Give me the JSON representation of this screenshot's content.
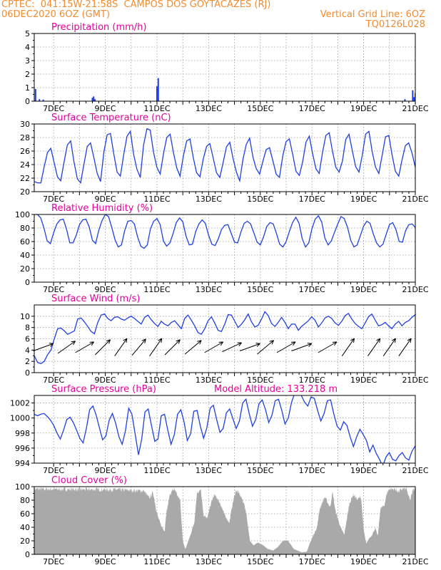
{
  "header": {
    "line1": "CPTEC:  041:15W-21:58S  CAMPOS DOS GOYTACAZES (RJ)",
    "line2_left": "06DEC2020 6OZ (GMT)",
    "line2_right": "Vertical Grid Line: 6OZ",
    "line3_right": "TQ0126L028"
  },
  "colors": {
    "header": "#f08c32",
    "title": "#e6009a",
    "series": "#2040e0",
    "cloud": "#a9a9a9",
    "wind_arrow": "#000000"
  },
  "x_tick_labels": [
    "7DEC",
    "9DEC",
    "11DEC",
    "13DEC",
    "15DEC",
    "17DEC",
    "19DEC",
    "21DEC"
  ],
  "chart_data": [
    {
      "type": "bar",
      "title": "Precipitation (mm/h)",
      "x_start_day": 6.25,
      "x_end_day": 21,
      "ylim": [
        0,
        5
      ],
      "yticks": [
        0,
        1,
        2,
        3,
        4,
        5
      ],
      "grid": true,
      "spikes": [
        [
          6.3,
          0.9
        ],
        [
          6.45,
          0.15
        ],
        [
          6.6,
          0.12
        ],
        [
          8.5,
          0.25
        ],
        [
          8.55,
          0.35
        ],
        [
          8.6,
          0.15
        ],
        [
          11.0,
          1.1
        ],
        [
          11.05,
          1.7
        ],
        [
          20.6,
          0.15
        ],
        [
          20.9,
          0.8
        ],
        [
          20.95,
          0.3
        ],
        [
          21.0,
          0.6
        ]
      ]
    },
    {
      "type": "line",
      "title": "Surface Temperature (nC)",
      "ylim": [
        20,
        30
      ],
      "yticks": [
        20,
        22,
        24,
        26,
        28,
        30
      ],
      "grid": true,
      "series": [
        {
          "values": [
            21.5,
            21.3,
            21.3,
            23.7,
            25.8,
            26.4,
            24.3,
            22.2,
            21.6,
            24.4,
            26.9,
            27.5,
            24.4,
            21.9,
            21.3,
            24.1,
            26.7,
            27.2,
            25.0,
            22.7,
            21.5,
            25.8,
            28.4,
            28.6,
            25.6,
            22.9,
            22.3,
            25.5,
            28.2,
            28.9,
            25.5,
            23.3,
            22.1,
            26.9,
            29.3,
            29.1,
            25.8,
            23.6,
            22.6,
            25.6,
            28.0,
            28.5,
            25.8,
            23.5,
            22.3,
            25.3,
            27.5,
            27.8,
            25.0,
            22.8,
            22.2,
            24.8,
            26.7,
            27.1,
            25.0,
            22.8,
            22.1,
            24.3,
            26.6,
            27.3,
            24.9,
            22.9,
            21.6,
            24.8,
            27.0,
            27.9,
            25.1,
            23.4,
            22.6,
            24.5,
            26.2,
            26.5,
            24.6,
            22.6,
            22.1,
            25.3,
            27.4,
            27.8,
            25.5,
            23.0,
            22.4,
            24.4,
            27.3,
            28.2,
            25.6,
            23.4,
            22.7,
            25.8,
            28.3,
            28.7,
            26.0,
            23.6,
            22.9,
            24.5,
            27.7,
            28.5,
            26.0,
            23.7,
            22.9,
            25.4,
            28.5,
            28.9,
            25.9,
            23.6,
            22.7,
            25.4,
            28.1,
            28.3,
            25.4,
            23.0,
            22.3,
            24.7,
            26.8,
            27.2,
            25.7,
            23.6
          ]
        }
      ]
    },
    {
      "type": "line",
      "title": "Relative Humidity (%)",
      "ylim": [
        0,
        100
      ],
      "yticks": [
        0,
        20,
        40,
        60,
        80,
        100
      ],
      "grid": true,
      "series": [
        {
          "values": [
            100,
            100,
            95,
            80,
            61,
            57,
            73,
            86,
            92,
            93,
            78,
            58,
            58,
            69,
            85,
            92,
            93,
            82,
            62,
            57,
            77,
            91,
            100,
            97,
            81,
            63,
            52,
            55,
            76,
            90,
            91,
            86,
            67,
            53,
            50,
            55,
            79,
            90,
            94,
            85,
            61,
            53,
            58,
            72,
            88,
            95,
            89,
            68,
            55,
            56,
            75,
            86,
            92,
            87,
            69,
            56,
            54,
            64,
            78,
            84,
            85,
            72,
            59,
            58,
            74,
            87,
            90,
            86,
            73,
            59,
            55,
            67,
            82,
            88,
            86,
            72,
            56,
            52,
            60,
            75,
            88,
            96,
            87,
            64,
            52,
            58,
            79,
            93,
            98,
            89,
            65,
            55,
            61,
            74,
            86,
            97,
            94,
            81,
            62,
            52,
            55,
            69,
            83,
            90,
            87,
            71,
            58,
            52,
            56,
            71,
            85,
            88,
            78,
            60,
            59,
            76,
            85,
            86,
            81
          ]
        }
      ]
    },
    {
      "type": "line",
      "title": "Surface Wind (m/s)",
      "ylim": [
        0,
        12
      ],
      "yticks": [
        0,
        2,
        4,
        6,
        8,
        10
      ],
      "grid": true,
      "series": [
        {
          "values": [
            3.0,
            1.8,
            1.6,
            2.0,
            3.2,
            4.0,
            6.0,
            7.8,
            7.9,
            7.4,
            6.8,
            7.1,
            7.4,
            9.5,
            9.7,
            9.0,
            8.2,
            7.3,
            6.9,
            8.9,
            10.2,
            10.4,
            9.6,
            9.2,
            9.8,
            9.9,
            9.5,
            9.3,
            9.7,
            10.0,
            9.6,
            9.1,
            8.6,
            9.8,
            10.2,
            9.4,
            8.7,
            8.2,
            9.1,
            8.6,
            8.3,
            8.9,
            9.2,
            8.5,
            7.8,
            9.6,
            10.2,
            9.3,
            8.3,
            7.1,
            6.8,
            7.8,
            9.2,
            9.9,
            8.8,
            7.5,
            7.3,
            8.6,
            10.3,
            10.2,
            9.1,
            8.0,
            8.6,
            9.4,
            10.4,
            9.0,
            8.1,
            8.4,
            9.5,
            10.8,
            10.1,
            8.7,
            8.2,
            8.9,
            9.8,
            8.9,
            7.8,
            8.6,
            8.6,
            7.5,
            8.2,
            8.7,
            9.2,
            9.9,
            9.3,
            8.1,
            8.8,
            9.7,
            10.0,
            9.6,
            8.8,
            8.4,
            9.1,
            10.1,
            10.5,
            9.5,
            8.7,
            8.2,
            7.8,
            8.8,
            9.9,
            10.4,
            9.3,
            8.3,
            8.5,
            8.9,
            8.3,
            7.8,
            8.6,
            9.1,
            8.3,
            8.9,
            9.2,
            9.8,
            10.3
          ]
        }
      ],
      "wind_arrows": [
        [
          6.6,
          250
        ],
        [
          7.5,
          235
        ],
        [
          8.2,
          240
        ],
        [
          8.9,
          225
        ],
        [
          9.6,
          215
        ],
        [
          10.3,
          220
        ],
        [
          10.95,
          215
        ],
        [
          11.6,
          225
        ],
        [
          12.4,
          230
        ],
        [
          13.2,
          240
        ],
        [
          13.9,
          245
        ],
        [
          14.6,
          250
        ],
        [
          15.2,
          230
        ],
        [
          16.0,
          240
        ],
        [
          16.6,
          250
        ],
        [
          17.6,
          240
        ],
        [
          18.4,
          215
        ],
        [
          19.4,
          215
        ],
        [
          20.0,
          215
        ],
        [
          20.6,
          215
        ]
      ]
    },
    {
      "type": "line",
      "title": "Surface Pressure (hPa)",
      "annotation": "Model Altitude: 133.218 m",
      "ylim": [
        994,
        1003
      ],
      "yticks": [
        994,
        996,
        998,
        1000,
        1002
      ],
      "grid": true,
      "series": [
        {
          "values": [
            1000.5,
            1000.3,
            1000.5,
            1000.6,
            1000.2,
            999.7,
            999.0,
            998.0,
            997.2,
            998.4,
            999.8,
            1000.1,
            999.4,
            998.4,
            997.3,
            996.7,
            998.6,
            1001.1,
            1001.6,
            1000.4,
            998.7,
            997.1,
            997.6,
            999.7,
            1000.6,
            999.3,
            997.5,
            996.5,
            998.3,
            1001.3,
            1000.5,
            997.8,
            995.1,
            997.2,
            1000.8,
            1001.2,
            999.0,
            996.9,
            997.2,
            1000.3,
            1000.5,
            998.4,
            996.5,
            997.8,
            1000.5,
            1001.1,
            999.5,
            997.0,
            997.9,
            1000.9,
            1001.0,
            998.9,
            997.3,
            998.7,
            1001.3,
            1001.7,
            999.8,
            998.1,
            998.6,
            1000.7,
            1001.2,
            999.9,
            998.6,
            999.6,
            1002.0,
            1002.5,
            1000.6,
            998.9,
            999.8,
            1001.9,
            1002.4,
            1001.1,
            999.4,
            1000.4,
            1002.3,
            1002.5,
            1001.0,
            999.2,
            1000.0,
            1002.1,
            1003.3,
            1003.3,
            1003.0,
            1002.1,
            1001.6,
            1002.8,
            1002.6,
            1001.0,
            999.6,
            1000.6,
            1002.3,
            1002.4,
            1000.5,
            998.9,
            998.4,
            999.5,
            999.0,
            997.5,
            996.2,
            997.5,
            998.5,
            997.8,
            997.0,
            995.5,
            996.4,
            995.3,
            994.5,
            993.6,
            994.8,
            995.4,
            994.5,
            994.3,
            995.0,
            995.4,
            994.7,
            994.4,
            995.6,
            996.3
          ]
        }
      ]
    },
    {
      "type": "area",
      "title": "Cloud Cover (%)",
      "ylim": [
        0,
        100
      ],
      "yticks": [
        0,
        20,
        40,
        60,
        80,
        100
      ],
      "grid": true,
      "x_start_day": 6.25,
      "x_end_day": 21,
      "step": 0.05,
      "segments": [
        [
          6.25,
          100
        ],
        [
          9.5,
          99
        ],
        [
          10.5,
          97
        ],
        [
          10.7,
          86
        ],
        [
          10.85,
          95
        ],
        [
          11.0,
          62
        ],
        [
          11.15,
          45
        ],
        [
          11.3,
          35
        ],
        [
          11.35,
          60
        ],
        [
          11.5,
          92
        ],
        [
          11.65,
          100
        ],
        [
          11.9,
          82
        ],
        [
          12.0,
          20
        ],
        [
          12.1,
          8
        ],
        [
          12.3,
          30
        ],
        [
          12.45,
          50
        ],
        [
          12.55,
          95
        ],
        [
          12.7,
          98
        ],
        [
          12.8,
          60
        ],
        [
          12.95,
          55
        ],
        [
          13.05,
          72
        ],
        [
          13.2,
          90
        ],
        [
          13.3,
          88
        ],
        [
          13.45,
          78
        ],
        [
          13.6,
          62
        ],
        [
          13.8,
          48
        ],
        [
          13.9,
          72
        ],
        [
          14.05,
          98
        ],
        [
          14.2,
          92
        ],
        [
          14.35,
          80
        ],
        [
          14.45,
          65
        ],
        [
          14.6,
          20
        ],
        [
          14.75,
          14
        ],
        [
          14.9,
          18
        ],
        [
          15.1,
          14
        ],
        [
          15.3,
          8
        ],
        [
          15.5,
          6
        ],
        [
          15.7,
          12
        ],
        [
          15.85,
          20
        ],
        [
          16.05,
          22
        ],
        [
          16.3,
          8
        ],
        [
          16.5,
          5
        ],
        [
          16.6,
          3
        ],
        [
          16.8,
          4
        ],
        [
          16.95,
          20
        ],
        [
          17.2,
          42
        ],
        [
          17.3,
          70
        ],
        [
          17.5,
          88
        ],
        [
          17.7,
          72
        ],
        [
          17.8,
          95
        ],
        [
          17.9,
          68
        ],
        [
          18.1,
          42
        ],
        [
          18.25,
          30
        ],
        [
          18.45,
          78
        ],
        [
          18.6,
          92
        ],
        [
          18.75,
          84
        ],
        [
          18.9,
          88
        ],
        [
          19.0,
          38
        ],
        [
          19.1,
          16
        ],
        [
          19.2,
          24
        ],
        [
          19.3,
          28
        ],
        [
          19.45,
          40
        ],
        [
          19.55,
          28
        ],
        [
          19.65,
          70
        ],
        [
          19.8,
          75
        ],
        [
          19.9,
          94
        ],
        [
          20.0,
          100
        ],
        [
          20.2,
          100
        ],
        [
          20.35,
          96
        ],
        [
          20.5,
          100
        ],
        [
          20.65,
          100
        ],
        [
          20.8,
          82
        ],
        [
          20.9,
          100
        ],
        [
          21.0,
          100
        ]
      ]
    }
  ]
}
